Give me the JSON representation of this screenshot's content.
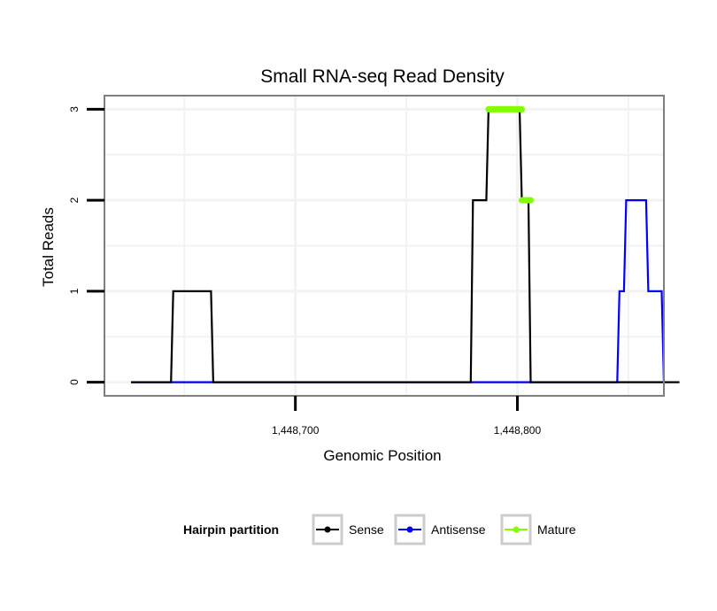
{
  "chart_data": {
    "type": "line",
    "title": "Small RNA-seq Read Density",
    "xlabel": "Genomic Position",
    "ylabel": "Total Reads",
    "xlim": [
      1448614,
      1448866
    ],
    "ylim": [
      -0.15,
      3.15
    ],
    "x_ticks": [
      1448700,
      1448800
    ],
    "x_tick_labels": [
      "1,448,700",
      "1,448,800"
    ],
    "y_ticks": [
      0,
      1,
      2,
      3
    ],
    "y_tick_labels": [
      "0",
      "1",
      "2",
      "3"
    ],
    "grid": true,
    "legend": {
      "title": "Hairpin partition",
      "position": "bottom",
      "entries": [
        {
          "name": "Sense",
          "color": "#000000"
        },
        {
          "name": "Antisense",
          "color": "#0000ff"
        },
        {
          "name": "Mature",
          "color": "#7fff00"
        }
      ]
    },
    "series": [
      {
        "name": "Sense",
        "color": "#000000",
        "style": "line",
        "points": [
          [
            1448626,
            0
          ],
          [
            1448644,
            0
          ],
          [
            1448645,
            1
          ],
          [
            1448662,
            1
          ],
          [
            1448663,
            0
          ],
          [
            1448779,
            0
          ],
          [
            1448780,
            2
          ],
          [
            1448786,
            2
          ],
          [
            1448787,
            3
          ],
          [
            1448801,
            3
          ],
          [
            1448802,
            2
          ],
          [
            1448805,
            2
          ],
          [
            1448806,
            0
          ],
          [
            1448873,
            0
          ]
        ]
      },
      {
        "name": "Antisense",
        "color": "#0000ff",
        "style": "line",
        "points": [
          [
            1448626,
            0
          ],
          [
            1448845,
            0
          ],
          [
            1448846,
            1
          ],
          [
            1448848,
            1
          ],
          [
            1448849,
            2
          ],
          [
            1448858,
            2
          ],
          [
            1448859,
            1
          ],
          [
            1448865,
            1
          ],
          [
            1448866,
            0
          ]
        ]
      },
      {
        "name": "Mature",
        "color": "#7fff00",
        "style": "points",
        "segments": [
          {
            "x_start": 1448787,
            "x_end": 1448802,
            "y": 3
          },
          {
            "x_start": 1448802,
            "x_end": 1448806,
            "y": 2
          }
        ]
      }
    ]
  }
}
